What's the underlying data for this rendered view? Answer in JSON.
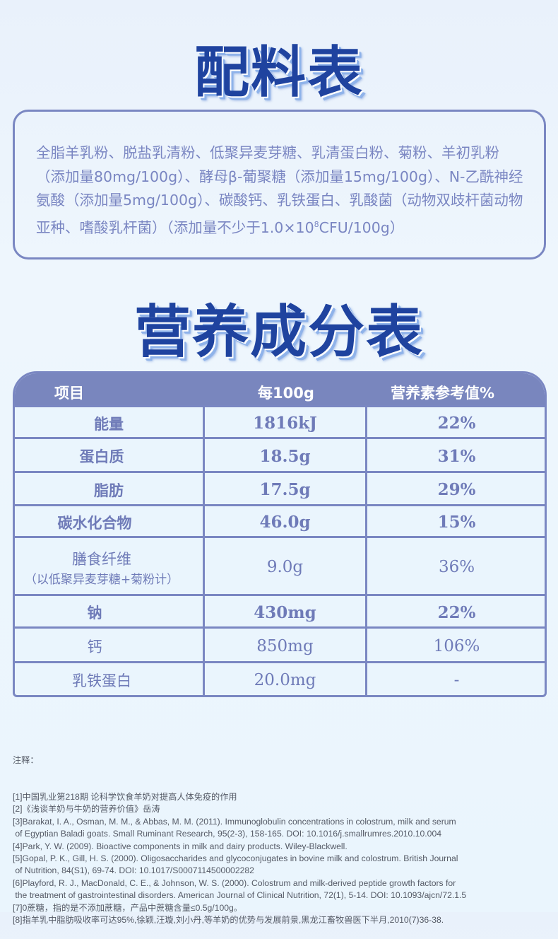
{
  "ingredients": {
    "title": "配料表",
    "text": "全脂羊乳粉、脱盐乳清粉、低聚异麦芽糖、乳清蛋白粉、菊粉、羊初乳粉（添加量80mg/100g）、酵母β-葡聚糖（添加量15mg/100g）、N-乙酰神经氨酸（添加量5mg/100g）、碳酸钙、乳铁蛋白、乳酸菌（动物双歧杆菌动物亚种、嗜酸乳杆菌）（添加量不少于1.0×10",
    "sup": "8",
    "tail": "CFU/100g）"
  },
  "nutrition": {
    "title": "营养成分表",
    "headers": [
      "项目",
      "每100g",
      "营养素参考值%"
    ],
    "rows": [
      {
        "item": "能量",
        "amount": "1816kJ",
        "nrv": "22%"
      },
      {
        "item": "蛋白质",
        "amount": "18.5g",
        "nrv": "31%"
      },
      {
        "item": "脂肪",
        "amount": "17.5g",
        "nrv": "29%"
      },
      {
        "item": "碳水化合物",
        "amount": "46.0g",
        "nrv": "15%"
      },
      {
        "item": "膳食纤维",
        "item_sub": "（以低聚异麦芽糖+菊粉计）",
        "amount": "9.0g",
        "nrv": "36%"
      },
      {
        "item": "钠",
        "amount": "430mg",
        "nrv": "22%"
      },
      {
        "item": "钙",
        "amount": "850mg",
        "nrv": "106%"
      },
      {
        "item": "乳铁蛋白",
        "amount": "20.0mg",
        "nrv": "-"
      }
    ]
  },
  "notes": {
    "label": "注释：",
    "items": [
      "[1]中国乳业第218期 论科学饮食羊奶对提高人体免疫的作用",
      "[2]《浅谈羊奶与牛奶的营养价值》岳涛",
      "[3]Barakat, I. A., Osman, M. M., & Abbas, M. M. (2011). Immunoglobulin concentrations in colostrum, milk and serum\n of Egyptian Baladi goats. Small Ruminant Research, 95(2-3), 158-165. DOI: 10.1016/j.smallrumres.2010.10.004",
      "[4]Park, Y. W. (2009). Bioactive components in milk and dairy products. Wiley-Blackwell.",
      "[5]Gopal, P. K., Gill, H. S. (2000). Oligosaccharides and glycoconjugates in bovine milk and colostrum. British Journal\n of Nutrition, 84(S1), 69-74. DOI: 10.1017/S0007114500002282",
      "[6]Playford, R. J., MacDonald, C. E., & Johnson, W. S. (2000). Colostrum and milk-derived peptide growth factors for\n the treatment of gastrointestinal disorders. American Journal of Clinical Nutrition, 72(1), 5-14. DOI: 10.1093/ajcn/72.1.5",
      "[7]0蔗糖，指的是不添加蔗糖，产品中蔗糖含量≤0.5g/100g。",
      "[8]指羊乳中脂肪吸收率可达95%,徐颖,汪璇,刘小丹,等羊奶的优势与发展前景,黑龙江畜牧兽医下半月,2010(7)36-38."
    ]
  }
}
